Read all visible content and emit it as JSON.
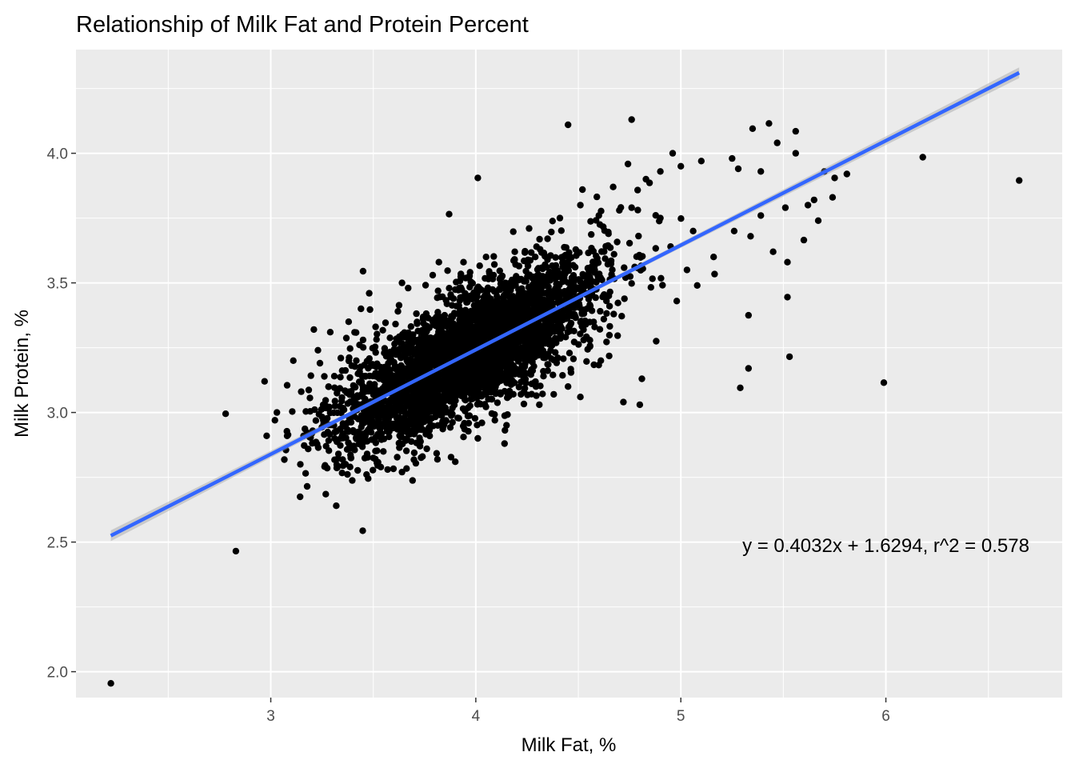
{
  "chart_data": {
    "type": "scatter",
    "title": "Relationship of Milk Fat and Protein Percent",
    "xlabel": "Milk Fat, %",
    "ylabel": "Milk Protein, %",
    "xlim": [
      2.05,
      6.86
    ],
    "ylim": [
      1.9,
      4.4
    ],
    "x_ticks": [
      3,
      4,
      5,
      6
    ],
    "x_tick_labels": [
      "3",
      "4",
      "5",
      "6"
    ],
    "y_ticks": [
      2.0,
      2.5,
      3.0,
      3.5,
      4.0
    ],
    "y_tick_labels": [
      "2.0",
      "2.5",
      "3.0",
      "3.5",
      "4.0"
    ],
    "grid": true,
    "panel_color": "#ebebeb",
    "point_color": "#000000",
    "fit_color": "#3366ff",
    "fit_line": {
      "slope": 0.4032,
      "intercept": 1.6294,
      "x_range": [
        2.22,
        6.65
      ]
    },
    "annotation": {
      "text": "y = 0.4032x + 1.6294, r^2 = 0.578",
      "x": 6.0,
      "y": 2.49
    },
    "cluster": {
      "x_mean": 3.97,
      "x_sd": 0.32,
      "y_sd_resid": 0.115,
      "n": 3600
    },
    "points": [
      [
        2.22,
        1.955
      ],
      [
        2.83,
        2.465
      ],
      [
        2.78,
        2.995
      ],
      [
        3.17,
        2.765
      ],
      [
        3.08,
        3.105
      ],
      [
        2.97,
        3.12
      ],
      [
        4.01,
        3.905
      ],
      [
        3.87,
        3.765
      ],
      [
        3.45,
        3.545
      ],
      [
        4.45,
        4.11
      ],
      [
        4.76,
        4.13
      ],
      [
        5.43,
        4.115
      ],
      [
        5.35,
        4.095
      ],
      [
        5.56,
        4.085
      ],
      [
        5.47,
        4.04
      ],
      [
        5.56,
        4.0
      ],
      [
        4.96,
        4.0
      ],
      [
        6.18,
        3.985
      ],
      [
        6.65,
        3.895
      ],
      [
        5.99,
        3.115
      ],
      [
        5.33,
        3.375
      ],
      [
        5.52,
        3.445
      ],
      [
        5.53,
        3.215
      ],
      [
        5.33,
        3.17
      ],
      [
        5.29,
        3.095
      ],
      [
        4.98,
        3.43
      ],
      [
        4.88,
        3.275
      ],
      [
        4.81,
        3.13
      ],
      [
        4.72,
        3.04
      ],
      [
        4.8,
        3.03
      ],
      [
        5.6,
        3.665
      ],
      [
        5.52,
        3.58
      ],
      [
        5.45,
        3.62
      ],
      [
        5.67,
        3.74
      ],
      [
        5.65,
        3.82
      ],
      [
        5.75,
        3.905
      ],
      [
        5.7,
        3.93
      ],
      [
        5.81,
        3.92
      ],
      [
        5.74,
        3.83
      ],
      [
        5.08,
        3.49
      ],
      [
        5.03,
        3.55
      ],
      [
        4.95,
        3.64
      ],
      [
        5.16,
        3.6
      ],
      [
        5.26,
        3.7
      ],
      [
        5.34,
        3.68
      ],
      [
        5.06,
        3.7
      ],
      [
        4.9,
        3.75
      ],
      [
        5.39,
        3.76
      ],
      [
        5.51,
        3.79
      ],
      [
        5.62,
        3.8
      ],
      [
        4.76,
        3.79
      ],
      [
        4.7,
        3.78
      ],
      [
        4.6,
        3.76
      ],
      [
        4.51,
        3.8
      ],
      [
        4.52,
        3.86
      ],
      [
        4.67,
        3.87
      ],
      [
        4.83,
        3.9
      ],
      [
        4.9,
        3.93
      ],
      [
        5.0,
        3.95
      ],
      [
        5.1,
        3.97
      ],
      [
        5.25,
        3.98
      ],
      [
        5.28,
        3.94
      ],
      [
        5.39,
        3.93
      ],
      [
        4.58,
        3.54
      ],
      [
        4.47,
        3.38
      ],
      [
        4.58,
        3.33
      ],
      [
        4.61,
        3.2
      ],
      [
        4.45,
        3.1
      ],
      [
        4.51,
        3.06
      ],
      [
        4.38,
        3.07
      ],
      [
        4.31,
        3.03
      ],
      [
        4.33,
        3.14
      ],
      [
        4.22,
        3.07
      ],
      [
        3.57,
        2.78
      ],
      [
        3.64,
        2.77
      ],
      [
        3.9,
        2.81
      ],
      [
        3.74,
        2.83
      ],
      [
        4.14,
        2.88
      ],
      [
        4.01,
        2.9
      ],
      [
        3.51,
        2.82
      ],
      [
        3.47,
        2.84
      ],
      [
        3.33,
        2.84
      ],
      [
        3.27,
        2.87
      ],
      [
        3.16,
        2.91
      ],
      [
        3.08,
        2.91
      ],
      [
        2.98,
        2.91
      ],
      [
        3.02,
        2.97
      ],
      [
        3.03,
        3.0
      ],
      [
        3.11,
        3.2
      ],
      [
        3.21,
        3.32
      ],
      [
        3.23,
        3.24
      ],
      [
        3.29,
        3.31
      ],
      [
        3.38,
        3.35
      ],
      [
        3.44,
        3.4
      ],
      [
        3.48,
        3.46
      ],
      [
        3.64,
        3.5
      ],
      [
        3.67,
        3.48
      ],
      [
        3.82,
        3.58
      ],
      [
        4.05,
        3.6
      ],
      [
        4.19,
        3.62
      ],
      [
        4.26,
        3.71
      ],
      [
        4.35,
        3.67
      ],
      [
        4.41,
        3.75
      ],
      [
        4.29,
        3.6
      ],
      [
        3.94,
        3.58
      ],
      [
        3.79,
        3.53
      ],
      [
        3.62,
        3.39
      ],
      [
        3.45,
        3.28
      ],
      [
        3.31,
        3.14
      ],
      [
        3.24,
        3.19
      ]
    ]
  }
}
